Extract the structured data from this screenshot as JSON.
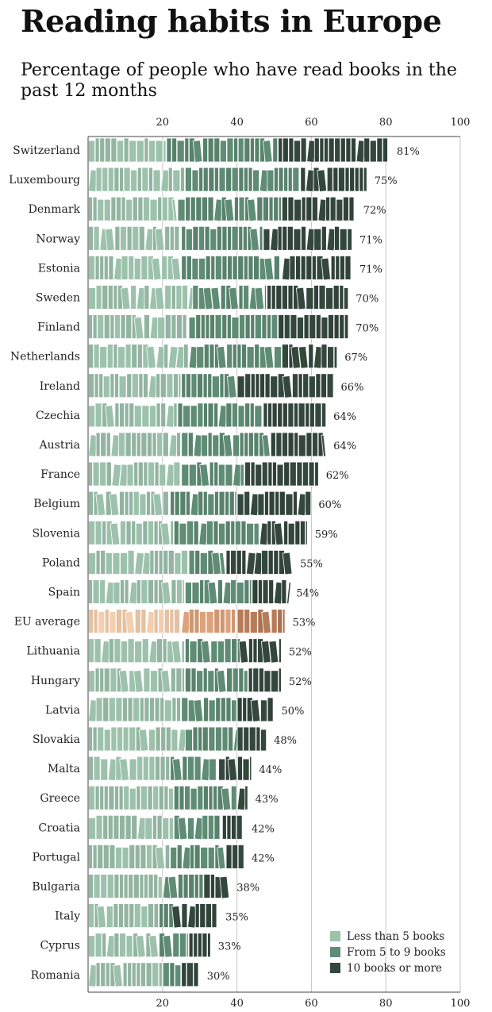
{
  "chart_data": {
    "type": "bar",
    "title": "Reading habits in Europe",
    "subtitle": "Percentage of people who have read books in the past 12 months",
    "xlim": [
      0,
      100
    ],
    "x_ticks": [
      20,
      40,
      60,
      80,
      100
    ],
    "x_tick_labels": [
      "20",
      "40",
      "60",
      "80",
      "100"
    ],
    "percent_suffix": "%",
    "legend": [
      {
        "label": "Less than 5 books",
        "color": "#9dc2ac"
      },
      {
        "label": "From 5 to 9 books",
        "color": "#5f8c74"
      },
      {
        "label": "10 books or more",
        "color": "#34473d"
      }
    ],
    "highlight_colors": [
      "#f4cfae",
      "#dda27c",
      "#b77b57"
    ],
    "categories": [
      "Switzerland",
      "Luxembourg",
      "Denmark",
      "Norway",
      "Estonia",
      "Sweden",
      "Finland",
      "Netherlands",
      "Ireland",
      "Czechia",
      "Austria",
      "France",
      "Belgium",
      "Slovenia",
      "Poland",
      "Spain",
      "EU average",
      "Lithuania",
      "Hungary",
      "Latvia",
      "Slovakia",
      "Malta",
      "Greece",
      "Croatia",
      "Portugal",
      "Bulgaria",
      "Italy",
      "Cyprus",
      "Romania"
    ],
    "highlight_category": "EU average",
    "series": [
      {
        "name": "Less than 5 books",
        "values": [
          21,
          26,
          24,
          25,
          25,
          28,
          27,
          27,
          25,
          24,
          25,
          25,
          22,
          23,
          27,
          26,
          25,
          26,
          26,
          25,
          26,
          22,
          23,
          23,
          22,
          20,
          19,
          19,
          20
        ]
      },
      {
        "name": "From 5 to 9 books",
        "values": [
          30,
          31,
          28,
          22,
          27,
          20,
          24,
          25,
          15,
          23,
          24,
          17,
          18,
          23,
          10,
          18,
          15,
          15,
          17,
          15,
          14,
          13,
          17,
          13,
          15,
          11,
          4,
          8,
          5
        ]
      },
      {
        "name": "10 books or more",
        "values": [
          30,
          18,
          20,
          24,
          19,
          22,
          19,
          15,
          26,
          17,
          15,
          20,
          20,
          13,
          18,
          10,
          13,
          11,
          9,
          10,
          8,
          9,
          3,
          6,
          5,
          7,
          12,
          6,
          5
        ]
      }
    ],
    "totals": [
      81,
      75,
      72,
      71,
      71,
      70,
      70,
      67,
      66,
      64,
      64,
      62,
      60,
      59,
      55,
      54,
      53,
      52,
      52,
      50,
      48,
      44,
      43,
      42,
      42,
      38,
      35,
      33,
      30
    ]
  }
}
